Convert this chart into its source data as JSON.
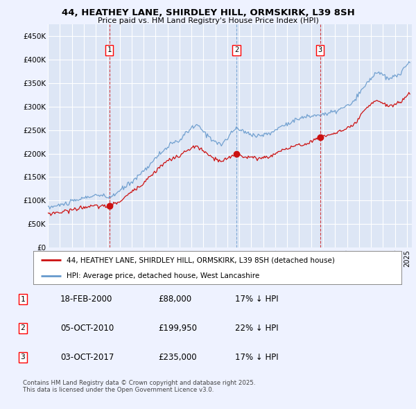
{
  "title": "44, HEATHEY LANE, SHIRDLEY HILL, ORMSKIRK, L39 8SH",
  "subtitle": "Price paid vs. HM Land Registry's House Price Index (HPI)",
  "background_color": "#eef2ff",
  "plot_bg_color": "#dde6f5",
  "grid_color": "#ffffff",
  "hpi_color": "#6699cc",
  "price_color": "#cc1111",
  "vline_color_red": "#cc1111",
  "vline_color_blue": "#6699cc",
  "sale_dates": [
    "2000-02-18",
    "2010-10-05",
    "2017-10-03"
  ],
  "sale_prices": [
    88000,
    199950,
    235000
  ],
  "sale_labels": [
    "1",
    "2",
    "3"
  ],
  "legend_entries": [
    "44, HEATHEY LANE, SHIRDLEY HILL, ORMSKIRK, L39 8SH (detached house)",
    "HPI: Average price, detached house, West Lancashire"
  ],
  "table_data": [
    [
      "1",
      "18-FEB-2000",
      "£88,000",
      "17% ↓ HPI"
    ],
    [
      "2",
      "05-OCT-2010",
      "£199,950",
      "22% ↓ HPI"
    ],
    [
      "3",
      "03-OCT-2017",
      "£235,000",
      "17% ↓ HPI"
    ]
  ],
  "footnote": "Contains HM Land Registry data © Crown copyright and database right 2025.\nThis data is licensed under the Open Government Licence v3.0.",
  "ylim": [
    0,
    475000
  ],
  "yticks": [
    0,
    50000,
    100000,
    150000,
    200000,
    250000,
    300000,
    350000,
    400000,
    450000
  ],
  "ytick_labels": [
    "£0",
    "£50K",
    "£100K",
    "£150K",
    "£200K",
    "£250K",
    "£300K",
    "£350K",
    "£400K",
    "£450K"
  ],
  "hpi_anchors_year": [
    1995.0,
    1996.0,
    1997.0,
    1998.0,
    1999.0,
    2000.12,
    2001.0,
    2002.0,
    2003.0,
    2004.0,
    2005.0,
    2006.0,
    2007.0,
    2007.5,
    2008.5,
    2009.5,
    2010.75,
    2011.5,
    2012.5,
    2013.5,
    2014.5,
    2015.5,
    2016.5,
    2017.75,
    2018.5,
    2019.5,
    2020.5,
    2021.5,
    2022.5,
    2023.5,
    2024.5,
    2025.2
  ],
  "hpi_anchors_val": [
    85000,
    90000,
    97000,
    105000,
    112000,
    106000,
    120000,
    140000,
    163000,
    190000,
    215000,
    228000,
    255000,
    260000,
    235000,
    218000,
    255000,
    245000,
    238000,
    242000,
    258000,
    270000,
    278000,
    283000,
    285000,
    295000,
    308000,
    345000,
    375000,
    358000,
    372000,
    395000
  ],
  "price_anchors_year": [
    1995.0,
    1996.0,
    1997.0,
    1998.0,
    1999.0,
    2000.12,
    2001.0,
    2002.0,
    2003.0,
    2004.0,
    2005.0,
    2006.0,
    2007.0,
    2007.5,
    2008.5,
    2009.5,
    2010.75,
    2011.5,
    2012.5,
    2013.5,
    2014.5,
    2015.5,
    2016.5,
    2017.75,
    2018.5,
    2019.5,
    2020.5,
    2021.5,
    2022.5,
    2023.5,
    2024.5,
    2025.2
  ],
  "price_anchors_val": [
    72000,
    75000,
    80000,
    86000,
    88000,
    88000,
    98000,
    118000,
    138000,
    163000,
    185000,
    195000,
    212000,
    215000,
    195000,
    182000,
    200000,
    193000,
    190000,
    193000,
    207000,
    215000,
    220000,
    235000,
    240000,
    248000,
    258000,
    293000,
    315000,
    300000,
    310000,
    330000
  ]
}
